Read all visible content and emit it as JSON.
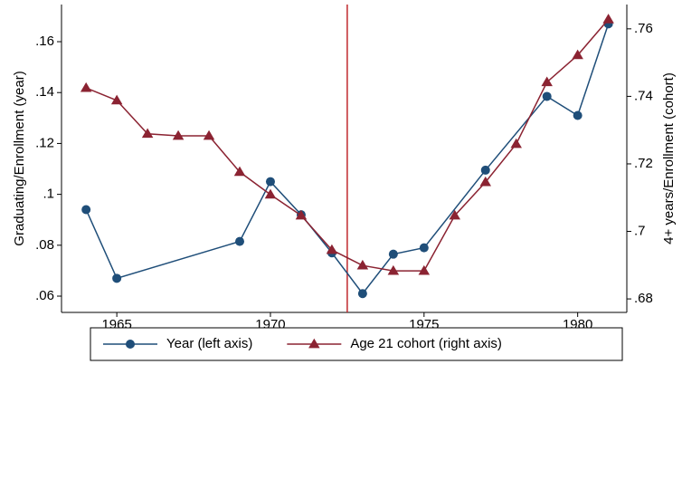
{
  "chart_data": {
    "type": "line",
    "y_label": "Graduating/Enrollment (year)",
    "y2_label": "4+ years/Enrollment (cohort)",
    "xlim": [
      1963.2,
      1981.6
    ],
    "xticks": [
      1965,
      1970,
      1975,
      1980
    ],
    "ylim": [
      0.0536,
      0.1746
    ],
    "yticks": [
      {
        "value": 0.06,
        "label": ".06"
      },
      {
        "value": 0.08,
        "label": ".08"
      },
      {
        "value": 0.1,
        "label": ".1"
      },
      {
        "value": 0.12,
        "label": ".12"
      },
      {
        "value": 0.14,
        "label": ".14"
      },
      {
        "value": 0.16,
        "label": ".16"
      }
    ],
    "y2lim": [
      0.676,
      0.7672
    ],
    "y2ticks": [
      {
        "value": 0.68,
        "label": ".68"
      },
      {
        "value": 0.7,
        "label": ".7"
      },
      {
        "value": 0.72,
        "label": ".72"
      },
      {
        "value": 0.74,
        "label": ".74"
      },
      {
        "value": 0.76,
        "label": ".76"
      }
    ],
    "vline": 1972.5,
    "vline_color": "#c0282d",
    "legend": "bottom",
    "series": [
      {
        "name": "Year (left axis)",
        "color": "#1f4e79",
        "marker": "circle",
        "x": [
          1964,
          1965,
          1969,
          1970,
          1971,
          1972,
          1973,
          1974,
          1975,
          1977,
          1979,
          1980,
          1981
        ],
        "values": [
          0.094,
          0.067,
          0.0815,
          0.105,
          0.092,
          0.077,
          0.061,
          0.0765,
          0.079,
          0.1095,
          0.1385,
          0.131,
          0.167
        ]
      },
      {
        "name": "Age 21 cohort (right axis)",
        "color": "#8b2332",
        "marker": "triangle",
        "axis": "y2",
        "x": [
          1964,
          1965,
          1966,
          1967,
          1968,
          1969,
          1970,
          1971,
          1972,
          1973,
          1974,
          1975,
          1976,
          1977,
          1978,
          1979,
          1980,
          1981
        ],
        "values": [
          0.7425,
          0.7388,
          0.7289,
          0.7283,
          0.7283,
          0.7176,
          0.7109,
          0.7047,
          0.6945,
          0.6899,
          0.6883,
          0.6883,
          0.7047,
          0.7146,
          0.7259,
          0.7442,
          0.7522,
          0.7628
        ]
      }
    ]
  }
}
